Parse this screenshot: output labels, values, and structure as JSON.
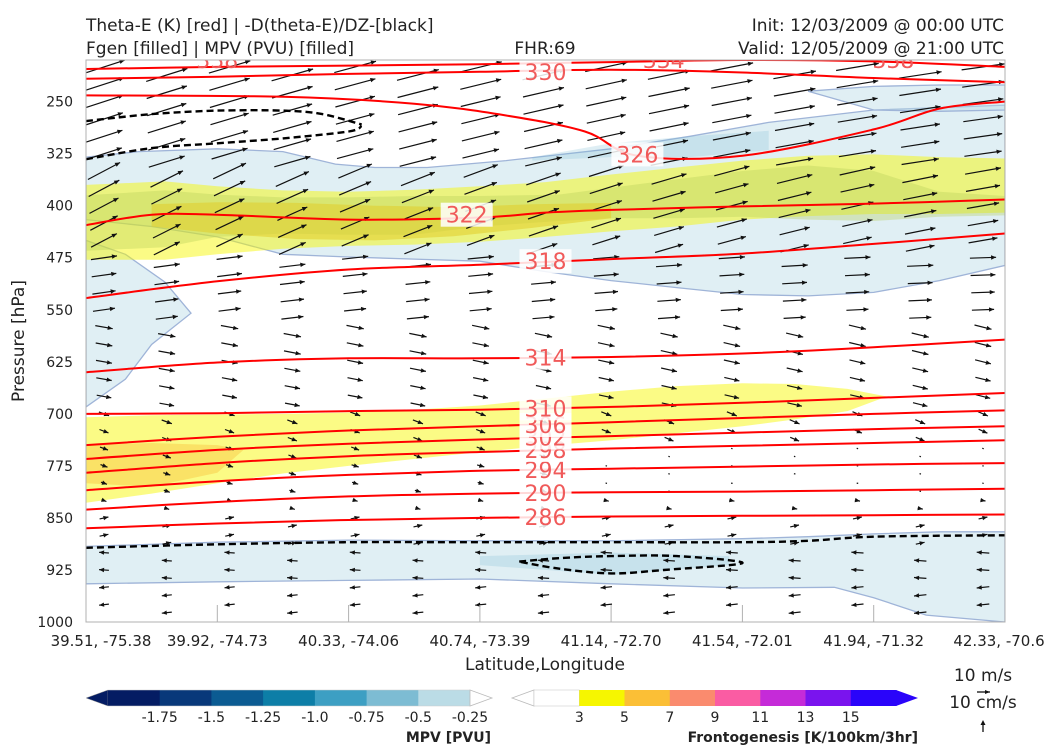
{
  "header": {
    "title_line1": "Theta-E (K) [red] | -D(theta-E)/DZ-[black]",
    "title_line2": "Fgen [filled] | MPV (PVU) [filled]",
    "fhr": "FHR:69",
    "init": "Init: 12/03/2009 @ 00:00 UTC",
    "valid": "Valid: 12/05/2009 @ 21:00 UTC"
  },
  "chart_data": {
    "type": "cross-section",
    "xlabel": "Latitude,Longitude",
    "ylabel": "Pressure [hPa]",
    "ylim": [
      1000,
      190
    ],
    "y_ticks": [
      250,
      325,
      400,
      475,
      550,
      625,
      700,
      775,
      850,
      925,
      1000
    ],
    "x_tick_values": [
      0,
      1,
      2,
      3,
      4,
      5,
      6,
      7
    ],
    "x_tick_labels": [
      "39.51, -75.38",
      "39.92, -74.73",
      "40.33, -74.06",
      "40.74, -73.39",
      "41.14, -72.70",
      "41.54, -72.01",
      "41.94, -71.32",
      "42.33, -70.6"
    ],
    "theta_e_contours": [
      {
        "level": 286,
        "points": [
          [
            0,
            865
          ],
          [
            1,
            858
          ],
          [
            2,
            853
          ],
          [
            3,
            850
          ],
          [
            4,
            848
          ],
          [
            5,
            847
          ],
          [
            6,
            846
          ],
          [
            7,
            845
          ]
        ],
        "label": {
          "x": 3.5,
          "y": 849
        }
      },
      {
        "level": 290,
        "points": [
          [
            0,
            838
          ],
          [
            1,
            827
          ],
          [
            2,
            819
          ],
          [
            3,
            815
          ],
          [
            4,
            813
          ],
          [
            5,
            812
          ],
          [
            6,
            810
          ],
          [
            7,
            808
          ]
        ],
        "label": {
          "x": 3.5,
          "y": 814
        }
      },
      {
        "level": 294,
        "points": [
          [
            0,
            810
          ],
          [
            1,
            797
          ],
          [
            2,
            788
          ],
          [
            3,
            782
          ],
          [
            4,
            779
          ],
          [
            5,
            776
          ],
          [
            6,
            773
          ],
          [
            7,
            771
          ]
        ],
        "label": {
          "x": 3.5,
          "y": 781
        }
      },
      {
        "level": 298,
        "points": [
          [
            0,
            785
          ],
          [
            1,
            771
          ],
          [
            2,
            761
          ],
          [
            3,
            755
          ],
          [
            4,
            750
          ],
          [
            5,
            746
          ],
          [
            6,
            742
          ],
          [
            7,
            738
          ]
        ],
        "label": {
          "x": 3.5,
          "y": 752
        }
      },
      {
        "level": 302,
        "points": [
          [
            0,
            765
          ],
          [
            1,
            752
          ],
          [
            2,
            743
          ],
          [
            3,
            737
          ],
          [
            4,
            732
          ],
          [
            5,
            727
          ],
          [
            6,
            722
          ],
          [
            7,
            718
          ]
        ],
        "label": {
          "x": 3.5,
          "y": 734
        }
      },
      {
        "level": 306,
        "points": [
          [
            0,
            745
          ],
          [
            1,
            733
          ],
          [
            2,
            724
          ],
          [
            3,
            718
          ],
          [
            4,
            712
          ],
          [
            5,
            706
          ],
          [
            6,
            700
          ],
          [
            7,
            695
          ]
        ],
        "label": {
          "x": 3.5,
          "y": 716
        }
      },
      {
        "level": 310,
        "points": [
          [
            0,
            700
          ],
          [
            1,
            699
          ],
          [
            2,
            696
          ],
          [
            3,
            694
          ],
          [
            4,
            690
          ],
          [
            5,
            684
          ],
          [
            6,
            677
          ],
          [
            7,
            670
          ]
        ],
        "label": {
          "x": 3.5,
          "y": 692
        }
      },
      {
        "level": 314,
        "points": [
          [
            0,
            640
          ],
          [
            1,
            626
          ],
          [
            2,
            620
          ],
          [
            3,
            620
          ],
          [
            4,
            618
          ],
          [
            5,
            613
          ],
          [
            6,
            604
          ],
          [
            7,
            593
          ]
        ],
        "label": {
          "x": 3.5,
          "y": 619
        }
      },
      {
        "level": 318,
        "points": [
          [
            0,
            533
          ],
          [
            1,
            509
          ],
          [
            2,
            492
          ],
          [
            3,
            485
          ],
          [
            4,
            477
          ],
          [
            5,
            469
          ],
          [
            6,
            455
          ],
          [
            7,
            440
          ]
        ],
        "label": {
          "x": 3.5,
          "y": 480
        }
      },
      {
        "level": 322,
        "points": [
          [
            0,
            428
          ],
          [
            0.5,
            413
          ],
          [
            1,
            413
          ],
          [
            2,
            420
          ],
          [
            3,
            417
          ],
          [
            3.5,
            410
          ],
          [
            4,
            406
          ],
          [
            5,
            401
          ],
          [
            6,
            397
          ],
          [
            7,
            391
          ]
        ],
        "label": {
          "x": 2.9,
          "y": 413
        }
      },
      {
        "level": 326,
        "points": [
          [
            0,
            241
          ],
          [
            1.5,
            243
          ],
          [
            2.5,
            253
          ],
          [
            3.2,
            270
          ],
          [
            3.8,
            293
          ],
          [
            4.2,
            328
          ],
          [
            5,
            328
          ],
          [
            6,
            290
          ],
          [
            6.5,
            260
          ],
          [
            7,
            250
          ]
        ],
        "label": {
          "x": 4.2,
          "y": 326
        }
      },
      {
        "level": 330,
        "points": [
          [
            0,
            217
          ],
          [
            1,
            214
          ],
          [
            2,
            210
          ],
          [
            3,
            207
          ],
          [
            4,
            204
          ],
          [
            5,
            208
          ],
          [
            6,
            216
          ],
          [
            7,
            222
          ]
        ],
        "label": {
          "x": 3.5,
          "y": 207
        }
      },
      {
        "level": 334,
        "points": [
          [
            0,
            203
          ],
          [
            1,
            200
          ],
          [
            2,
            198
          ],
          [
            3,
            196
          ],
          [
            4,
            193
          ],
          [
            5,
            190
          ],
          [
            6,
            192
          ],
          [
            7,
            200
          ]
        ],
        "label": {
          "x": 2.5,
          "y": 196
        }
      }
    ],
    "top_edge_labels": [
      "338",
      "334",
      "338"
    ],
    "stability_contours_black_dashed": [
      {
        "points": [
          [
            0,
            278
          ],
          [
            0.5,
            268
          ],
          [
            1,
            263
          ],
          [
            1.5,
            263
          ],
          [
            1.8,
            268
          ],
          [
            2.1,
            283
          ]
        ]
      },
      {
        "points": [
          [
            0,
            333
          ],
          [
            0.5,
            317
          ],
          [
            1,
            310
          ],
          [
            1.5,
            303
          ],
          [
            2,
            293
          ],
          [
            2.1,
            285
          ]
        ]
      },
      {
        "points": [
          [
            0,
            893
          ],
          [
            1,
            888
          ],
          [
            2,
            885
          ],
          [
            3,
            885
          ],
          [
            4,
            885
          ],
          [
            5,
            885
          ],
          [
            5.5,
            883
          ],
          [
            6,
            877
          ],
          [
            7,
            875
          ]
        ]
      },
      {
        "points": [
          [
            3.3,
            913
          ],
          [
            3.6,
            908
          ],
          [
            4,
            905
          ],
          [
            4.5,
            905
          ],
          [
            5,
            915
          ],
          [
            4.4,
            925
          ],
          [
            4,
            930
          ],
          [
            3.6,
            923
          ],
          [
            3.3,
            913
          ]
        ]
      }
    ],
    "fgen_levels": [
      3,
      5,
      7,
      9,
      11,
      13,
      15
    ],
    "fgen_colors": [
      "#f6f600",
      "#fbbf36",
      "#fa8b6e",
      "#fa5ca3",
      "#c52bd8",
      "#7a14ee",
      "#2a04fa"
    ],
    "mpv_levels": [
      -1.75,
      -1.5,
      -1.25,
      -1.0,
      -0.75,
      -0.5,
      -0.25
    ],
    "mpv_colors": [
      "#041c63",
      "#08387a",
      "#0b5b92",
      "#0d7ea7",
      "#3d9fc3",
      "#7dbcd3",
      "#bbdce6",
      "#ffffff"
    ],
    "mpv_label": "MPV [PVU]",
    "fgen_label": "Frontogenesis [K/100km/3hr]",
    "wind_key": {
      "u_label": "10 m/s",
      "w_label": "10 cm/s"
    },
    "wind_field": {
      "x_columns": 15,
      "levels": [
        200,
        225,
        250,
        275,
        300,
        325,
        350,
        375,
        400,
        425,
        450,
        475,
        500,
        525,
        550,
        575,
        600,
        625,
        650,
        675,
        700,
        725,
        750,
        775,
        800,
        825,
        850,
        875,
        900,
        925,
        950,
        975
      ]
    },
    "colors": {
      "theta_e": "#ff0000",
      "theta_e_label": "#f05a5a",
      "stability": "#000000",
      "axes": "#b0b0b0",
      "mpv_edge": "#9fb4d8"
    }
  }
}
